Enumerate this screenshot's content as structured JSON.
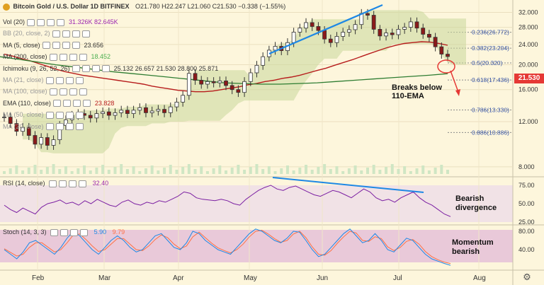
{
  "header": {
    "symbol_icon": "bitcoin-gold-icon",
    "title": "Bitcoin Gold / U.S. Dollar  1D  BITFINEX",
    "ohlc": "O21.780  H22.247  L21.060  C21.530  −0.338 (−1.55%)"
  },
  "indicators": [
    {
      "label": "Vol (20)",
      "values": "31.326K  82.645K",
      "color": "#9c27b0"
    },
    {
      "label": "BB (20, close, 2)",
      "values": "",
      "color": "#999999"
    },
    {
      "label": "MA (5, close)",
      "values": "23.656",
      "color": "#333333"
    },
    {
      "label": "MA (200, close)",
      "values": "18.452",
      "color": "#4caf50"
    },
    {
      "label": "Ichimoku (9, 26, 52, 26)",
      "values": "25.132  26.657  21.530  28.800  25.871",
      "color": "#333333"
    },
    {
      "label": "MA (21, close)",
      "values": "",
      "color": "#999999"
    },
    {
      "label": "MA (100, close)",
      "values": "",
      "color": "#999999"
    },
    {
      "label": "EMA (110, close)",
      "values": "23.828",
      "color": "#b71c1c"
    },
    {
      "label": "MA (50, close)",
      "values": "",
      "color": "#999999"
    },
    {
      "label": "MA (20, close)",
      "values": "",
      "color": "#999999"
    }
  ],
  "rsi_label": {
    "label": "RSI (14, close)",
    "value": "32.40"
  },
  "stoch_label": {
    "label": "Stoch (14, 3, 3)",
    "k": "5.90",
    "d": "9.79"
  },
  "annotations": {
    "breaks": "Breaks below\n110-EMA",
    "bearish_div": "Bearish\ndivergence",
    "momentum": "Momentum\nbearish"
  },
  "current_price": "21.530",
  "settings_icon": "gear-icon",
  "chart_data": {
    "type": "candlestick",
    "x_ticks": [
      "Feb",
      "Mar",
      "Apr",
      "May",
      "Jun",
      "Jul",
      "Aug"
    ],
    "y_ticks": [
      8.0,
      12.0,
      16.0,
      20.0,
      24.0,
      28.0,
      32.0
    ],
    "fib_levels": [
      {
        "label": "0.236(26.772)",
        "value": 26.772
      },
      {
        "label": "0.382(23.204)",
        "value": 23.204
      },
      {
        "label": "0.5(20.320)",
        "value": 20.32
      },
      {
        "label": "0.618(17.436)",
        "value": 17.436
      },
      {
        "label": "0.786(13.330)",
        "value": 13.33
      },
      {
        "label": "0.886(10.886)",
        "value": 10.886
      }
    ],
    "price_path": [
      12.5,
      11.8,
      11.0,
      11.4,
      10.6,
      9.8,
      10.4,
      9.7,
      10.2,
      11.6,
      12.2,
      12.7,
      12.9,
      12.7,
      12.4,
      12.9,
      13.1,
      12.7,
      13.0,
      13.3,
      12.9,
      13.3,
      13.6,
      13.0,
      13.2,
      13.4,
      13.0,
      13.7,
      14.3,
      15.2,
      18.5,
      17.4,
      16.8,
      17.2,
      17.0,
      17.3,
      16.6,
      16.0,
      15.6,
      17.2,
      18.6,
      19.9,
      21.5,
      22.8,
      23.6,
      22.7,
      24.4,
      26.8,
      27.8,
      29.2,
      28.2,
      27.2,
      25.2,
      24.4,
      25.8,
      26.8,
      27.4,
      28.7,
      31.7,
      31.2,
      27.5,
      25.9,
      26.6,
      26.2,
      27.5,
      28.0,
      29.4,
      27.8,
      26.3,
      25.6,
      23.5,
      22.0,
      21.53
    ],
    "ema110": [
      22.0,
      21.6,
      21.1,
      20.7,
      20.2,
      19.7,
      19.2,
      18.8,
      18.5,
      18.2,
      18.0,
      17.8,
      17.6,
      17.4,
      17.2,
      17.0,
      16.8,
      16.5,
      16.3,
      16.1,
      15.9,
      15.8,
      15.7,
      15.7,
      15.8,
      16.0,
      16.2,
      16.4,
      16.7,
      16.9,
      17.2,
      17.4,
      17.7,
      17.9,
      18.2,
      18.6,
      19.0,
      19.4,
      19.9,
      20.4,
      20.9,
      21.5,
      22.1,
      22.7,
      23.3,
      23.8,
      24.2,
      24.4,
      24.6,
      24.5,
      24.2,
      23.83
    ],
    "ma200": [
      21.5,
      21.0,
      20.5,
      20.0,
      19.6,
      19.2,
      18.8,
      18.5,
      18.2,
      17.9,
      17.6,
      17.3,
      17.0,
      16.9,
      16.8,
      16.8,
      16.9,
      17.0,
      17.2,
      17.4,
      17.6,
      17.8,
      18.0,
      18.2,
      18.452
    ],
    "rsi": [
      48,
      42,
      38,
      44,
      40,
      36,
      45,
      50,
      52,
      55,
      50,
      52,
      48,
      54,
      50,
      56,
      52,
      48,
      46,
      52,
      55,
      50,
      48,
      52,
      50,
      54,
      52,
      56,
      60,
      66,
      64,
      58,
      56,
      55,
      54,
      56,
      54,
      50,
      48,
      56,
      62,
      68,
      72,
      75,
      70,
      68,
      72,
      74,
      70,
      66,
      62,
      60,
      64,
      68,
      66,
      62,
      58,
      64,
      70,
      66,
      58,
      54,
      56,
      52,
      58,
      62,
      66,
      58,
      52,
      48,
      42,
      36,
      32.4
    ],
    "stoch_k": [
      40,
      30,
      20,
      35,
      55,
      60,
      50,
      40,
      30,
      45,
      65,
      80,
      70,
      55,
      40,
      30,
      45,
      60,
      70,
      60,
      45,
      35,
      40,
      55,
      70,
      75,
      60,
      45,
      40,
      55,
      80,
      75,
      60,
      50,
      40,
      35,
      30,
      45,
      60,
      75,
      85,
      80,
      70,
      60,
      55,
      65,
      80,
      78,
      60,
      40,
      25,
      30,
      45,
      60,
      75,
      85,
      70,
      55,
      60,
      75,
      60,
      40,
      35,
      50,
      65,
      60,
      45,
      30,
      20,
      15,
      10,
      5.9
    ],
    "stoch_d": [
      42,
      34,
      26,
      30,
      45,
      55,
      55,
      45,
      35,
      40,
      55,
      72,
      74,
      62,
      48,
      36,
      40,
      52,
      64,
      64,
      52,
      40,
      38,
      48,
      62,
      72,
      66,
      52,
      42,
      48,
      68,
      78,
      66,
      54,
      44,
      38,
      33,
      40,
      52,
      68,
      80,
      82,
      74,
      64,
      56,
      60,
      74,
      80,
      66,
      46,
      30,
      28,
      38,
      54,
      68,
      80,
      76,
      60,
      58,
      68,
      64,
      46,
      38,
      45,
      58,
      62,
      52,
      36,
      25,
      18,
      13,
      9.79
    ]
  }
}
